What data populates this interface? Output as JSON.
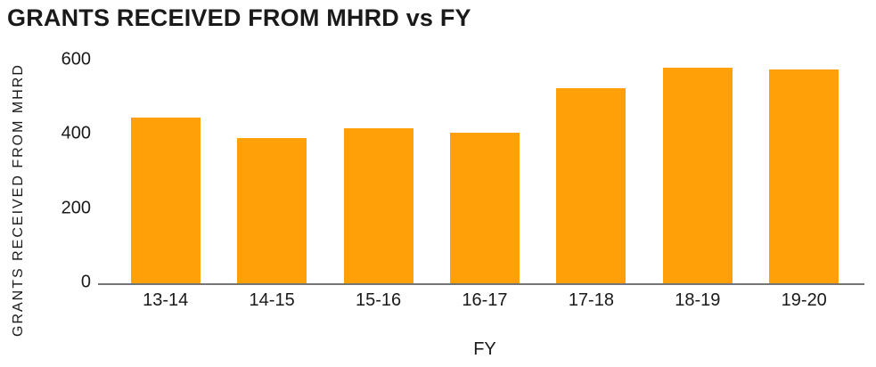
{
  "chart_data": {
    "type": "bar",
    "title": "GRANTS RECEIVED FROM MHRD vs FY",
    "xlabel": "FY",
    "ylabel": "GRANTS RECEIVED FROM MHRD",
    "categories": [
      "13-14",
      "14-15",
      "15-16",
      "16-17",
      "17-18",
      "18-19",
      "19-20"
    ],
    "values": [
      445,
      390,
      418,
      405,
      525,
      580,
      575
    ],
    "yticks": [
      0,
      200,
      400,
      600
    ],
    "ylim": [
      0,
      620
    ],
    "grid": false,
    "legend": false,
    "colors": {
      "bar": "#ffa008",
      "axis_line": "#757575",
      "text": "#1a1a1a",
      "background": "#ffffff"
    }
  }
}
